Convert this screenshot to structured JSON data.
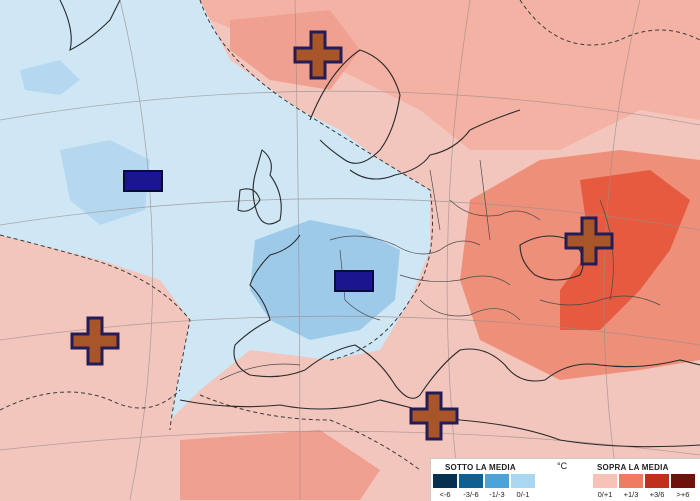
{
  "map": {
    "background_color": "#f2c6bd",
    "symbols": [
      {
        "id": "plus-north-scandinavia",
        "type": "plus",
        "meaning": "above average"
      },
      {
        "id": "minus-north-atlantic",
        "type": "minus",
        "meaning": "below average"
      },
      {
        "id": "minus-france",
        "type": "minus",
        "meaning": "below average"
      },
      {
        "id": "plus-eastern-europe",
        "type": "plus",
        "meaning": "above average"
      },
      {
        "id": "plus-atlantic-south",
        "type": "plus",
        "meaning": "above average"
      },
      {
        "id": "plus-central-mediterranean",
        "type": "plus",
        "meaning": "above average"
      }
    ],
    "symbol_colors": {
      "plus_fill": "#a8552a",
      "plus_outline": "#241c55",
      "minus_fill": "#1a1690",
      "minus_outline": "#0b0b3a"
    }
  },
  "legend": {
    "below_title": "SOTTO LA MEDIA",
    "above_title": "SOPRA LA MEDIA",
    "unit": "°C",
    "below_classes": [
      {
        "label": "<-6",
        "color": "#07304f"
      },
      {
        "label": "-3/-6",
        "color": "#0e5f92"
      },
      {
        "label": "-1/-3",
        "color": "#4aa3d9"
      },
      {
        "label": "0/-1",
        "color": "#a9d6f1"
      }
    ],
    "above_classes": [
      {
        "label": "0/+1",
        "color": "#f7c3b8"
      },
      {
        "label": "+1/3",
        "color": "#ef7b63"
      },
      {
        "label": "+3/6",
        "color": "#c0311d"
      },
      {
        "label": ">+6",
        "color": "#6e120b"
      }
    ]
  }
}
